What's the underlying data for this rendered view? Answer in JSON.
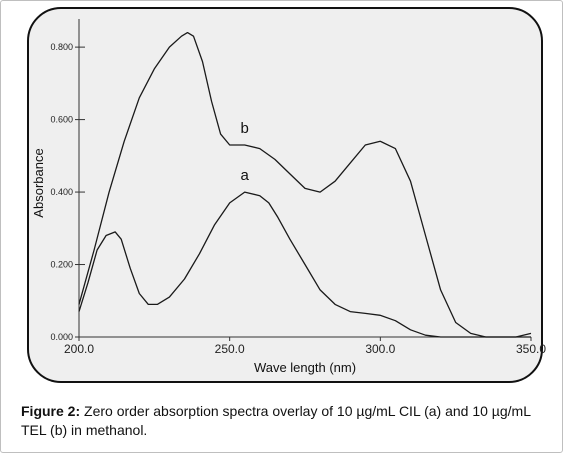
{
  "caption": {
    "label": "Figure 2:",
    "text": " Zero order absorption spectra overlay of 10 µg/mL CIL (a) and 10 µg/mL TEL (b) in methanol."
  },
  "colors": {
    "line": "#1a1a1a",
    "plot_background": "#efefef",
    "border": "#111111"
  },
  "chart_data": {
    "type": "line",
    "title": "",
    "xlabel": "Wave length (nm)",
    "ylabel": "Absorbance",
    "xlim": [
      200,
      350
    ],
    "ylim": [
      0,
      0.85
    ],
    "x_ticks": [
      200,
      250,
      300,
      350
    ],
    "x_tick_labels": [
      "200.0",
      "250.0",
      "300.0",
      "350.0"
    ],
    "y_ticks": [
      0,
      0.2,
      0.4,
      0.6,
      0.8
    ],
    "y_tick_labels": [
      "0.000",
      "0.200",
      "0.400",
      "0.600",
      "0.800"
    ],
    "grid": false,
    "series": [
      {
        "name": "a",
        "x": [
          200,
          203,
          206,
          209,
          212,
          214,
          217,
          220,
          223,
          226,
          230,
          235,
          240,
          245,
          250,
          255,
          260,
          263,
          266,
          270,
          275,
          280,
          285,
          290,
          295,
          300,
          305,
          310,
          315,
          320,
          325,
          330,
          340,
          350
        ],
        "y": [
          0.07,
          0.15,
          0.24,
          0.28,
          0.29,
          0.27,
          0.19,
          0.12,
          0.09,
          0.09,
          0.11,
          0.16,
          0.23,
          0.31,
          0.37,
          0.4,
          0.39,
          0.37,
          0.33,
          0.27,
          0.2,
          0.13,
          0.09,
          0.07,
          0.065,
          0.06,
          0.045,
          0.02,
          0.005,
          0.0,
          0.0,
          0.0,
          0.0,
          0.0
        ]
      },
      {
        "name": "b",
        "x": [
          200,
          205,
          210,
          215,
          220,
          225,
          230,
          234,
          236,
          238,
          241,
          244,
          247,
          250,
          255,
          260,
          265,
          270,
          275,
          280,
          285,
          290,
          295,
          300,
          305,
          310,
          315,
          320,
          325,
          330,
          335,
          340,
          345,
          350
        ],
        "y": [
          0.09,
          0.24,
          0.4,
          0.54,
          0.66,
          0.74,
          0.8,
          0.83,
          0.84,
          0.83,
          0.76,
          0.65,
          0.56,
          0.53,
          0.53,
          0.52,
          0.49,
          0.45,
          0.41,
          0.4,
          0.43,
          0.48,
          0.53,
          0.54,
          0.52,
          0.43,
          0.28,
          0.13,
          0.04,
          0.01,
          0.0,
          0.0,
          0.0,
          0.01
        ]
      }
    ]
  }
}
